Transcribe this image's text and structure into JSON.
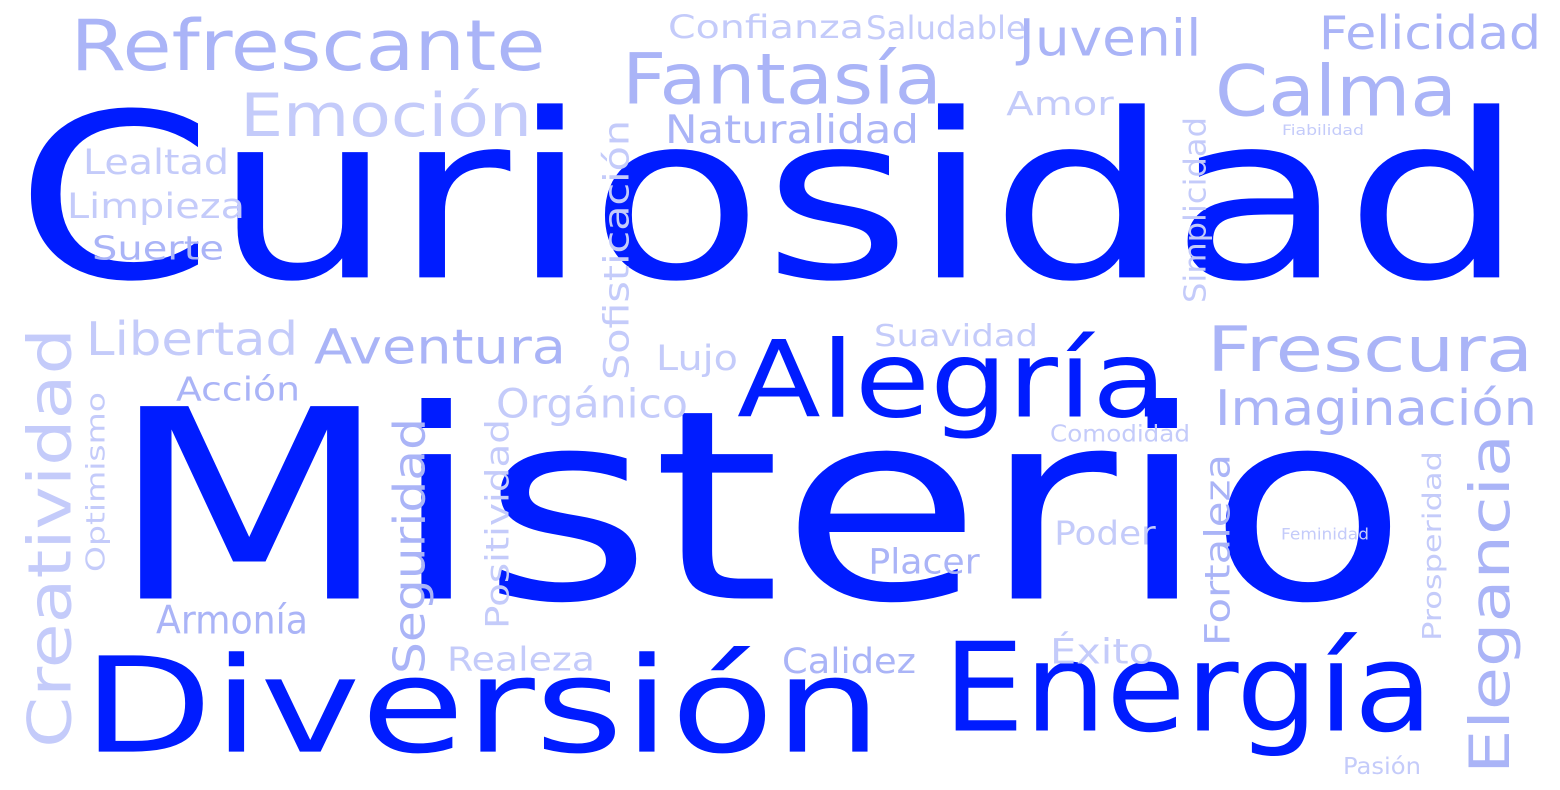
{
  "palette": {
    "dominant": "#001cff",
    "light": "#aab4f7",
    "lighter": "#c4cbfa"
  },
  "words": [
    {
      "text": "Curiosidad",
      "tier": "dominant"
    },
    {
      "text": "Misterio",
      "tier": "dominant"
    },
    {
      "text": "Diversión",
      "tier": "dominant"
    },
    {
      "text": "Energía",
      "tier": "dominant"
    },
    {
      "text": "Alegría",
      "tier": "dominant"
    },
    {
      "text": "Refrescante",
      "tier": "light"
    },
    {
      "text": "Confianza",
      "tier": "lighter"
    },
    {
      "text": "Saludable",
      "tier": "lighter"
    },
    {
      "text": "Juvenil",
      "tier": "light"
    },
    {
      "text": "Felicidad",
      "tier": "light"
    },
    {
      "text": "Fantasía",
      "tier": "light"
    },
    {
      "text": "Calma",
      "tier": "light"
    },
    {
      "text": "Emoción",
      "tier": "lighter"
    },
    {
      "text": "Amor",
      "tier": "lighter"
    },
    {
      "text": "Naturalidad",
      "tier": "light"
    },
    {
      "text": "Fiabilidad",
      "tier": "lighter"
    },
    {
      "text": "Lealtad",
      "tier": "lighter"
    },
    {
      "text": "Limpieza",
      "tier": "lighter"
    },
    {
      "text": "Suerte",
      "tier": "light"
    },
    {
      "text": "Sofisticación",
      "tier": "lighter"
    },
    {
      "text": "Simplicidad",
      "tier": "lighter"
    },
    {
      "text": "Libertad",
      "tier": "lighter"
    },
    {
      "text": "Aventura",
      "tier": "light"
    },
    {
      "text": "Suavidad",
      "tier": "lighter"
    },
    {
      "text": "Lujo",
      "tier": "lighter"
    },
    {
      "text": "Frescura",
      "tier": "light"
    },
    {
      "text": "Creatividad",
      "tier": "lighter"
    },
    {
      "text": "Acción",
      "tier": "light"
    },
    {
      "text": "Orgánico",
      "tier": "lighter"
    },
    {
      "text": "Imaginación",
      "tier": "light"
    },
    {
      "text": "Optimismo",
      "tier": "lighter"
    },
    {
      "text": "Comodidad",
      "tier": "lighter"
    },
    {
      "text": "Seguridad",
      "tier": "light"
    },
    {
      "text": "Positividad",
      "tier": "lighter"
    },
    {
      "text": "Fortaleza",
      "tier": "light"
    },
    {
      "text": "Elegancia",
      "tier": "light"
    },
    {
      "text": "Poder",
      "tier": "lighter"
    },
    {
      "text": "Feminidad",
      "tier": "lighter"
    },
    {
      "text": "Prosperidad",
      "tier": "lighter"
    },
    {
      "text": "Placer",
      "tier": "light"
    },
    {
      "text": "Armonía",
      "tier": "light"
    },
    {
      "text": "Éxito",
      "tier": "lighter"
    },
    {
      "text": "Realeza",
      "tier": "lighter"
    },
    {
      "text": "Calidez",
      "tier": "light"
    },
    {
      "text": "Pasión",
      "tier": "lighter"
    }
  ]
}
